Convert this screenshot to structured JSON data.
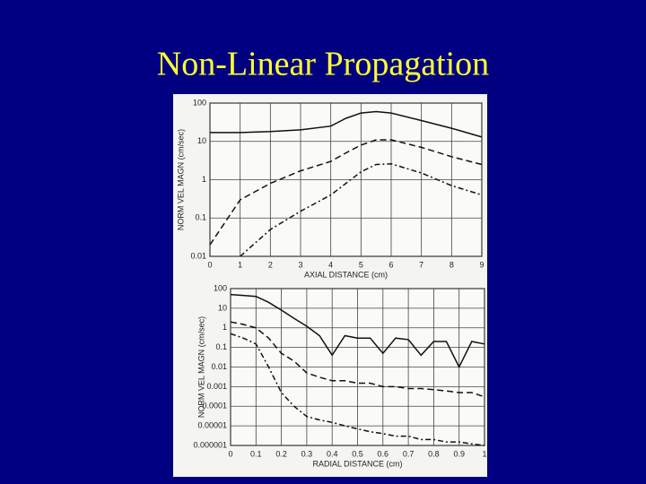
{
  "title": "Non-Linear Propagation",
  "chart_data": [
    {
      "type": "line",
      "xlabel": "AXIAL DISTANCE (cm)",
      "ylabel": "NORM VEL MAGN (cm/sec)",
      "log_y": true,
      "grid": true,
      "xlim": [
        0,
        9
      ],
      "xticks": [
        0,
        1,
        2,
        3,
        4,
        5,
        6,
        7,
        8,
        9
      ],
      "ylim": [
        0.01,
        100
      ],
      "yticks": [
        100,
        10,
        1,
        0.1,
        0.01
      ],
      "x": [
        0,
        1,
        2,
        3,
        4,
        4.5,
        5,
        5.5,
        6,
        7,
        8,
        9
      ],
      "series": [
        {
          "color": "#111111",
          "dash": "solid",
          "values": [
            17,
            17,
            18,
            20,
            25,
            40,
            55,
            60,
            55,
            35,
            22,
            13
          ]
        },
        {
          "color": "#111111",
          "dash": "dashed",
          "values": [
            0.02,
            0.3,
            0.8,
            1.7,
            3,
            5,
            8,
            11,
            11,
            7,
            4,
            2.5
          ]
        },
        {
          "color": "#111111",
          "dash": "dashdot",
          "values": [
            null,
            0.01,
            0.05,
            0.15,
            0.4,
            0.8,
            1.6,
            2.5,
            2.6,
            1.5,
            0.7,
            0.4
          ]
        }
      ]
    },
    {
      "type": "line",
      "xlabel": "RADIAL DISTANCE (cm)",
      "ylabel": "NORM VEL MAGN (cm/sec)",
      "log_y": true,
      "grid": true,
      "xlim": [
        0,
        1
      ],
      "xticks": [
        0,
        0.1,
        0.2,
        0.3,
        0.4,
        0.5,
        0.6,
        0.7,
        0.8,
        0.9,
        1
      ],
      "ylim": [
        1e-06,
        100
      ],
      "yticks": [
        100,
        10,
        1,
        0.1,
        0.01,
        0.001,
        0.0001,
        1e-05,
        1e-06
      ],
      "x": [
        0,
        0.05,
        0.1,
        0.15,
        0.2,
        0.25,
        0.3,
        0.35,
        0.4,
        0.45,
        0.5,
        0.55,
        0.6,
        0.65,
        0.7,
        0.75,
        0.8,
        0.85,
        0.9,
        0.95,
        1
      ],
      "series": [
        {
          "color": "#111111",
          "dash": "solid",
          "values": [
            50,
            45,
            40,
            20,
            8,
            3,
            1.2,
            0.4,
            0.04,
            0.4,
            0.3,
            0.3,
            0.05,
            0.3,
            0.25,
            0.04,
            0.2,
            0.2,
            0.01,
            0.2,
            0.15
          ]
        },
        {
          "color": "#111111",
          "dash": "dashed",
          "values": [
            2,
            1.5,
            1,
            0.3,
            0.05,
            0.02,
            0.005,
            0.003,
            0.002,
            0.002,
            0.0015,
            0.0015,
            0.001,
            0.001,
            0.0008,
            0.0008,
            0.0007,
            0.0006,
            0.0005,
            0.0005,
            0.0003
          ]
        },
        {
          "color": "#111111",
          "dash": "dashdot",
          "values": [
            0.5,
            0.3,
            0.15,
            0.01,
            0.0005,
            0.0001,
            3e-05,
            2e-05,
            1.5e-05,
            1e-05,
            7e-06,
            5e-06,
            4e-06,
            3e-06,
            3e-06,
            2e-06,
            2e-06,
            1.5e-06,
            1.5e-06,
            1.2e-06,
            1e-06
          ]
        }
      ]
    }
  ]
}
